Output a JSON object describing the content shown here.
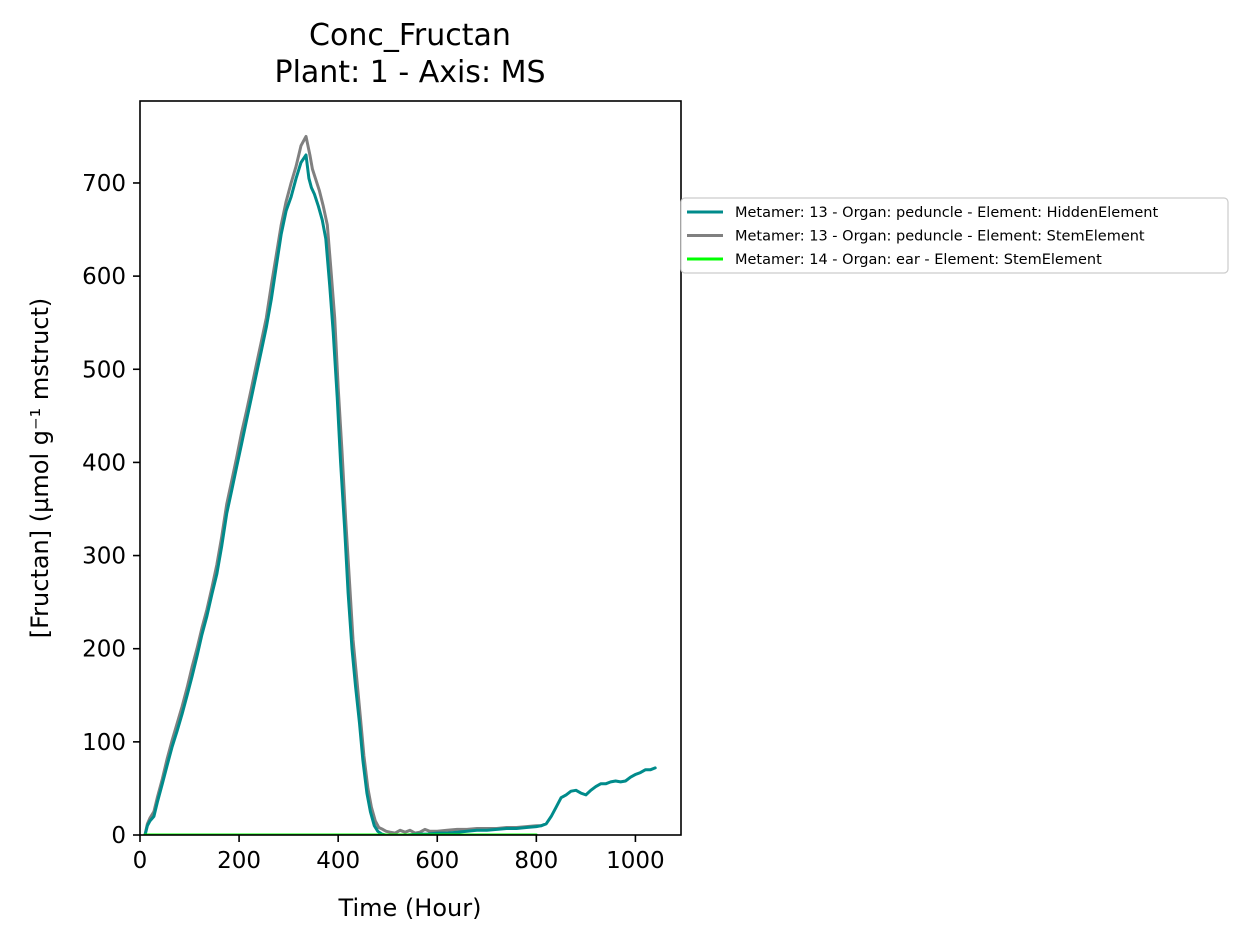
{
  "chart_data": {
    "type": "line",
    "title": "Conc_Fructan",
    "subtitle": "Plant: 1 - Axis: MS",
    "xlabel": "Time (Hour)",
    "ylabel": "[Fructan] (µmol g⁻¹ mstruct)",
    "xlim": [
      0,
      1092
    ],
    "ylim": [
      0,
      788
    ],
    "xticks": [
      0,
      200,
      400,
      600,
      800,
      1000
    ],
    "yticks": [
      0,
      100,
      200,
      300,
      400,
      500,
      600,
      700
    ],
    "grid": false,
    "legend_position": "outside-right-top",
    "series": [
      {
        "name": "Metamer: 13 - Organ: peduncle - Element: HiddenElement",
        "color": "#008b8b",
        "x": [
          10,
          15,
          20,
          28,
          35,
          45,
          55,
          65,
          75,
          85,
          95,
          105,
          115,
          125,
          135,
          145,
          155,
          165,
          175,
          185,
          195,
          205,
          215,
          225,
          235,
          245,
          255,
          265,
          275,
          285,
          295,
          305,
          315,
          325,
          335,
          341,
          346,
          352,
          360,
          368,
          375,
          383,
          390,
          398,
          405,
          413,
          420,
          428,
          435,
          443,
          450,
          458,
          465,
          473,
          480,
          488,
          495,
          502,
          510,
          520,
          530,
          540,
          560,
          580,
          600,
          620,
          640,
          660,
          680,
          700,
          720,
          740,
          760,
          780,
          800,
          810,
          820,
          830,
          840,
          850,
          860,
          870,
          880,
          890,
          900,
          910,
          920,
          930,
          940,
          950,
          960,
          970,
          980,
          990,
          1000,
          1010,
          1020,
          1030,
          1040
        ],
        "values": [
          0,
          10,
          15,
          20,
          35,
          55,
          75,
          95,
          112,
          130,
          150,
          170,
          192,
          215,
          235,
          258,
          280,
          310,
          345,
          370,
          395,
          420,
          445,
          470,
          495,
          520,
          545,
          575,
          610,
          645,
          670,
          685,
          705,
          722,
          730,
          705,
          695,
          688,
          675,
          660,
          640,
          590,
          540,
          470,
          400,
          330,
          260,
          200,
          160,
          120,
          80,
          45,
          25,
          10,
          4,
          1,
          0,
          0,
          0,
          0,
          0,
          0,
          1,
          1,
          2,
          2,
          3,
          4,
          5,
          5,
          6,
          7,
          7,
          8,
          9,
          10,
          12,
          20,
          30,
          40,
          43,
          47,
          48,
          45,
          43,
          48,
          52,
          55,
          55,
          57,
          58,
          57,
          58,
          62,
          65,
          67,
          70,
          70,
          72
        ]
      },
      {
        "name": "Metamer: 13 - Organ: peduncle - Element: StemElement",
        "color": "#808080",
        "x": [
          10,
          15,
          20,
          28,
          35,
          45,
          55,
          65,
          75,
          85,
          95,
          105,
          115,
          125,
          135,
          145,
          155,
          165,
          175,
          185,
          195,
          205,
          215,
          225,
          235,
          245,
          255,
          265,
          275,
          285,
          295,
          305,
          315,
          325,
          335,
          343,
          348,
          354,
          362,
          370,
          378,
          385,
          393,
          400,
          408,
          415,
          423,
          430,
          438,
          445,
          452,
          460,
          467,
          475,
          482,
          490,
          497,
          505,
          515,
          525,
          535,
          545,
          555,
          565,
          575,
          585,
          600,
          620,
          640,
          660,
          680,
          700,
          720,
          740,
          760,
          780,
          800,
          810
        ],
        "values": [
          0,
          12,
          18,
          25,
          40,
          60,
          82,
          102,
          120,
          138,
          158,
          180,
          200,
          222,
          242,
          265,
          290,
          320,
          355,
          380,
          405,
          432,
          455,
          480,
          505,
          530,
          555,
          590,
          622,
          655,
          680,
          700,
          718,
          740,
          750,
          730,
          715,
          705,
          692,
          675,
          655,
          610,
          555,
          480,
          410,
          340,
          270,
          210,
          165,
          125,
          85,
          50,
          30,
          15,
          8,
          6,
          4,
          3,
          2,
          5,
          3,
          5,
          2,
          3,
          6,
          4,
          4,
          5,
          6,
          6,
          7,
          7,
          7,
          8,
          8,
          9,
          10,
          10
        ]
      },
      {
        "name": "Metamer: 14 - Organ: ear - Element: StemElement",
        "color": "#00ff00",
        "x": [
          10,
          100,
          200,
          300,
          400,
          500,
          600,
          700,
          800
        ],
        "values": [
          0,
          0,
          0,
          0,
          0,
          0,
          0,
          0,
          0
        ]
      }
    ]
  }
}
